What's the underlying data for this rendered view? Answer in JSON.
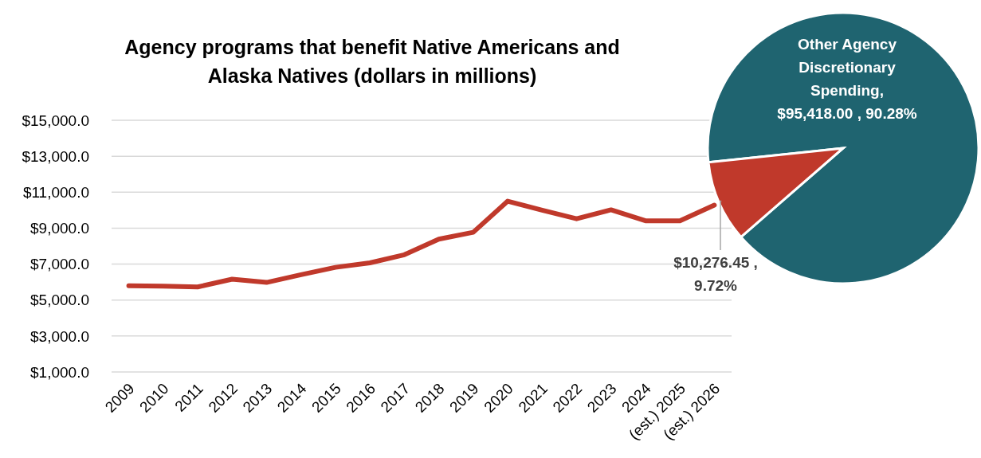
{
  "chart_data": [
    {
      "type": "line",
      "title": "Agency programs that benefit Native Americans and Alaska Natives (dollars in millions)",
      "categories": [
        "2009",
        "2010",
        "2011",
        "2012",
        "2013",
        "2014",
        "2015",
        "2016",
        "2017",
        "2018",
        "2019",
        "2020",
        "2021",
        "2022",
        "2023",
        "2024",
        "(est.) 2025",
        "(est.) 2026"
      ],
      "series": [
        {
          "color": "#c0392b",
          "values": [
            5800,
            5770,
            5730,
            6160,
            5980,
            6410,
            6820,
            7070,
            7520,
            8390,
            8770,
            10500,
            10000,
            9520,
            10020,
            9410,
            9410,
            10280
          ]
        }
      ],
      "ylim": [
        1000,
        15000
      ],
      "yticks": [
        {
          "value": 1000,
          "label": "$1,000.0"
        },
        {
          "value": 3000,
          "label": "$3,000.0"
        },
        {
          "value": 5000,
          "label": "$5,000.0"
        },
        {
          "value": 7000,
          "label": "$7,000.0"
        },
        {
          "value": 9000,
          "label": "$9,000.0"
        },
        {
          "value": 11000,
          "label": "$11,000.0"
        },
        {
          "value": 13000,
          "label": "$13,000.0"
        },
        {
          "value": 15000,
          "label": "$15,000.0"
        }
      ],
      "grid": "y",
      "marker": "none",
      "line_style": "solid"
    },
    {
      "type": "pie",
      "categories": [
        "Other Agency Discretionary Spending",
        null
      ],
      "values": [
        95418.0,
        10276.45
      ],
      "colors": [
        "#1f6470",
        "#c0392b"
      ],
      "value_labels": [
        ", $95,418.00 , 90.28%",
        "$10,276.45 , 9.72%"
      ]
    }
  ]
}
